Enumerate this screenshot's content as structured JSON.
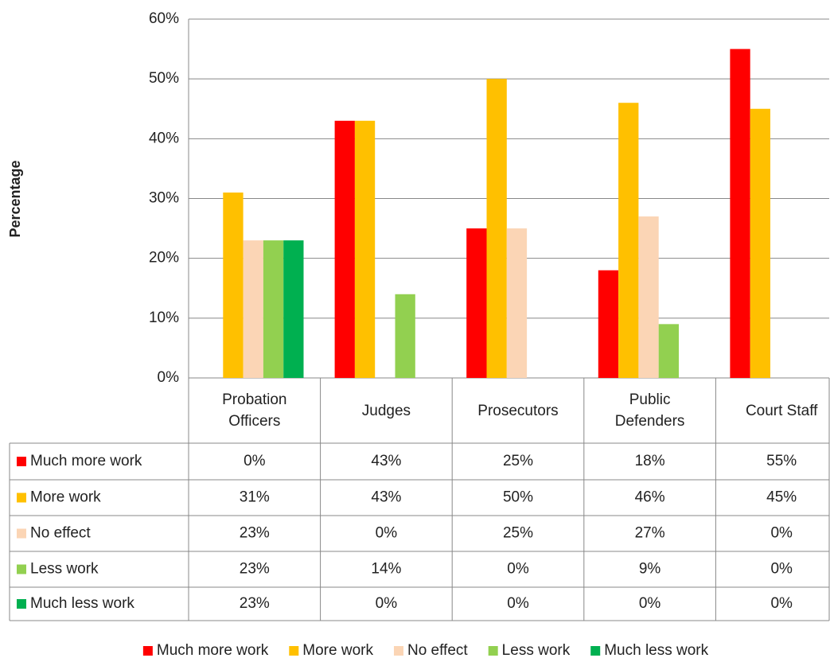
{
  "chart_data": {
    "type": "bar",
    "y_label": "Percentage",
    "categories": [
      "Probation Officers",
      "Judges",
      "Prosecutors",
      "Public Defenders",
      "Court Staff"
    ],
    "series": [
      {
        "name": "Much more work",
        "color": "#ff0000",
        "values": [
          0,
          43,
          25,
          18,
          55
        ],
        "value_labels": [
          "0%",
          "43%",
          "25%",
          "18%",
          "55%"
        ]
      },
      {
        "name": "More work",
        "color": "#ffc000",
        "values": [
          31,
          43,
          50,
          46,
          45
        ],
        "value_labels": [
          "31%",
          "43%",
          "50%",
          "46%",
          "45%"
        ]
      },
      {
        "name": "No effect",
        "color": "#fbd5b5",
        "values": [
          23,
          0,
          25,
          27,
          0
        ],
        "value_labels": [
          "23%",
          "0%",
          "25%",
          "27%",
          "0%"
        ]
      },
      {
        "name": "Less work",
        "color": "#92d050",
        "values": [
          23,
          14,
          0,
          9,
          0
        ],
        "value_labels": [
          "23%",
          "14%",
          "0%",
          "9%",
          "0%"
        ]
      },
      {
        "name": "Much less work",
        "color": "#00b050",
        "values": [
          23,
          0,
          0,
          0,
          0
        ],
        "value_labels": [
          "23%",
          "0%",
          "0%",
          "0%",
          "0%"
        ]
      }
    ],
    "ylim": [
      0,
      60
    ],
    "yticks": [
      {
        "value": 0,
        "label": "0%"
      },
      {
        "value": 10,
        "label": "10%"
      },
      {
        "value": 20,
        "label": "20%"
      },
      {
        "value": 30,
        "label": "30%"
      },
      {
        "value": 40,
        "label": "40%"
      },
      {
        "value": 50,
        "label": "50%"
      },
      {
        "value": 60,
        "label": "60%"
      }
    ],
    "grid": true,
    "legend": "bottom"
  }
}
